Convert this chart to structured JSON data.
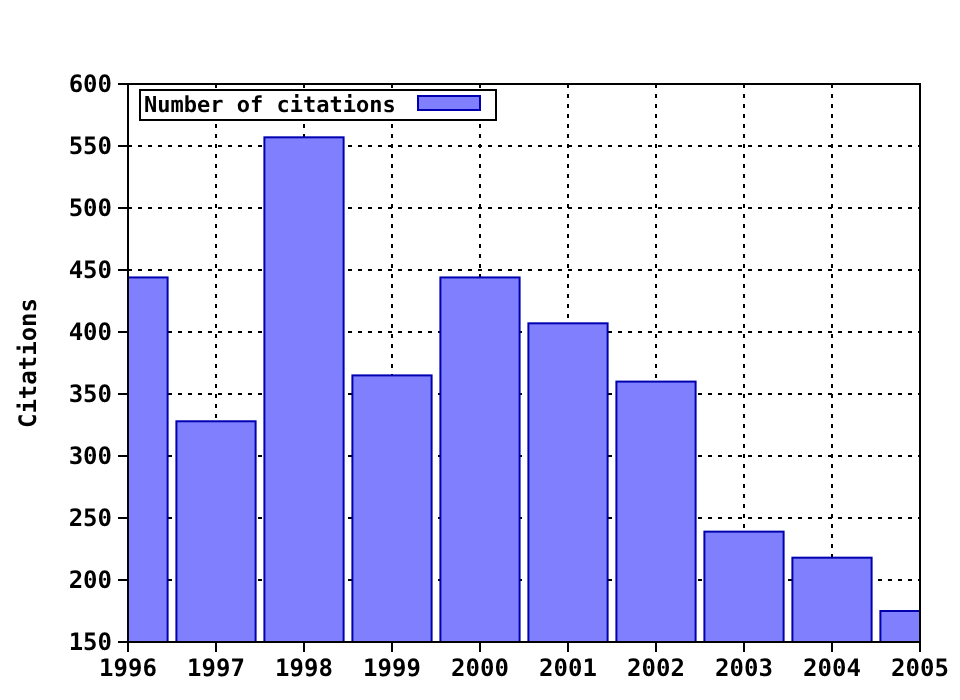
{
  "chart_data": {
    "type": "bar",
    "ylabel": "Citations",
    "x": [
      1996,
      1997,
      1998,
      1999,
      2000,
      2001,
      2002,
      2003,
      2004,
      2005
    ],
    "series": [
      {
        "name": "Number of citations",
        "color": "#8080ff",
        "values": [
          444,
          328,
          557,
          365,
          444,
          407,
          360,
          239,
          218,
          175
        ]
      }
    ],
    "xlim": [
      1996,
      2005
    ],
    "xticks": [
      1996,
      1997,
      1998,
      1999,
      2000,
      2001,
      2002,
      2003,
      2004,
      2005
    ],
    "ylim": [
      150,
      600
    ],
    "yticks": [
      150,
      200,
      250,
      300,
      350,
      400,
      450,
      500,
      550,
      600
    ],
    "grid": true,
    "legend": "top left"
  }
}
